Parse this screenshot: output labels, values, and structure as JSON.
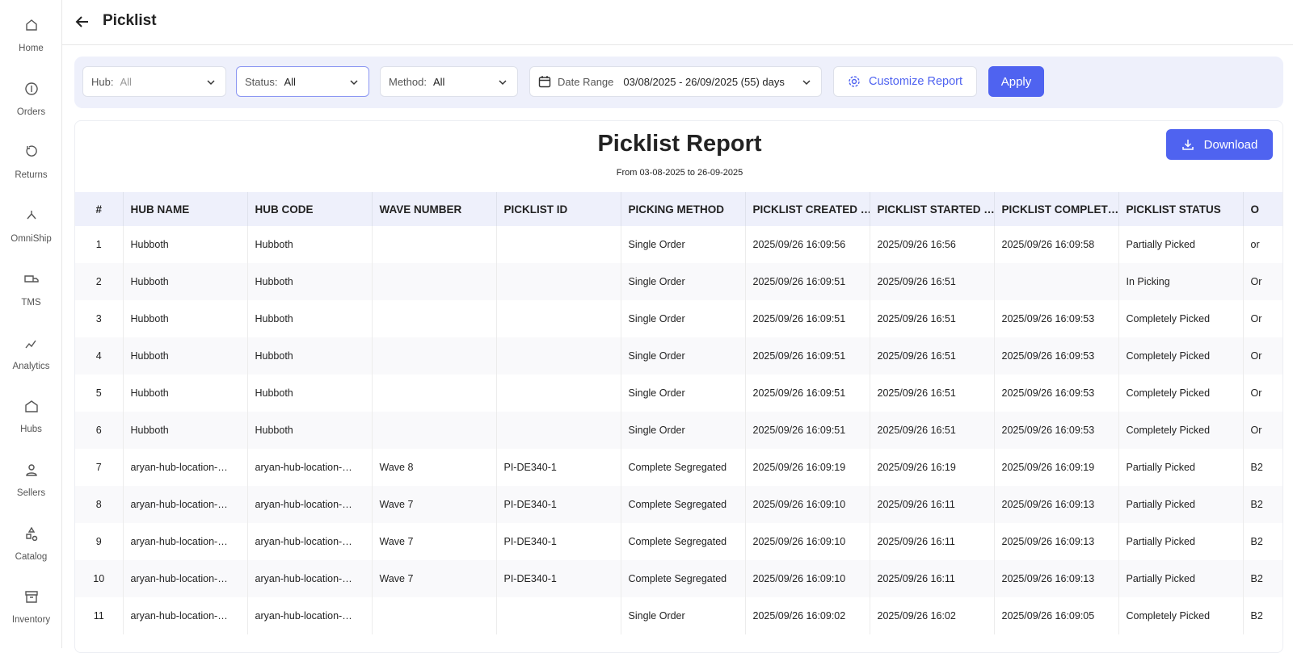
{
  "sidebar": {
    "items": [
      "Home",
      "Orders",
      "Returns",
      "OmniShip",
      "TMS",
      "Analytics",
      "Hubs",
      "Sellers",
      "Catalog",
      "Inventory"
    ]
  },
  "header": {
    "title": "Picklist"
  },
  "filters": {
    "hub": {
      "label": "Hub:",
      "value": "All"
    },
    "status": {
      "label": "Status:",
      "value": "All"
    },
    "method": {
      "label": "Method:",
      "value": "All"
    },
    "date_range": {
      "label": "Date Range",
      "value": "03/08/2025 - 26/09/2025 (55) days"
    },
    "customize": "Customize Report",
    "apply": "Apply"
  },
  "report": {
    "title": "Picklist Report",
    "subtitle": "From 03-08-2025 to 26-09-2025",
    "download": "Download"
  },
  "table": {
    "columns": [
      "#",
      "HUB NAME",
      "HUB CODE",
      "WAVE NUMBER",
      "PICKLIST ID",
      "PICKING METHOD",
      "PICKLIST CREATED …",
      "PICKLIST STARTED …",
      "PICKLIST COMPLET…",
      "PICKLIST STATUS",
      "O"
    ],
    "rows": [
      [
        "1",
        "Hubboth",
        "Hubboth",
        null,
        null,
        "Single Order",
        "2025/09/26 16:09:56",
        "2025/09/26 16:56",
        "2025/09/26 16:09:58",
        "Partially Picked",
        "or"
      ],
      [
        "2",
        "Hubboth",
        "Hubboth",
        null,
        null,
        "Single Order",
        "2025/09/26 16:09:51",
        "2025/09/26 16:51",
        null,
        "In Picking",
        "Or"
      ],
      [
        "3",
        "Hubboth",
        "Hubboth",
        null,
        null,
        "Single Order",
        "2025/09/26 16:09:51",
        "2025/09/26 16:51",
        "2025/09/26 16:09:53",
        "Completely Picked",
        "Or"
      ],
      [
        "4",
        "Hubboth",
        "Hubboth",
        null,
        null,
        "Single Order",
        "2025/09/26 16:09:51",
        "2025/09/26 16:51",
        "2025/09/26 16:09:53",
        "Completely Picked",
        "Or"
      ],
      [
        "5",
        "Hubboth",
        "Hubboth",
        null,
        null,
        "Single Order",
        "2025/09/26 16:09:51",
        "2025/09/26 16:51",
        "2025/09/26 16:09:53",
        "Completely Picked",
        "Or"
      ],
      [
        "6",
        "Hubboth",
        "Hubboth",
        null,
        null,
        "Single Order",
        "2025/09/26 16:09:51",
        "2025/09/26 16:51",
        "2025/09/26 16:09:53",
        "Completely Picked",
        "Or"
      ],
      [
        "7",
        "aryan-hub-location-…",
        "aryan-hub-location-…",
        "Wave 8",
        "PI-DE340-1",
        "Complete Segregated",
        "2025/09/26 16:09:19",
        "2025/09/26 16:19",
        "2025/09/26 16:09:19",
        "Partially Picked",
        "B2"
      ],
      [
        "8",
        "aryan-hub-location-…",
        "aryan-hub-location-…",
        "Wave 7",
        "PI-DE340-1",
        "Complete Segregated",
        "2025/09/26 16:09:10",
        "2025/09/26 16:11",
        "2025/09/26 16:09:13",
        "Partially Picked",
        "B2"
      ],
      [
        "9",
        "aryan-hub-location-…",
        "aryan-hub-location-…",
        "Wave 7",
        "PI-DE340-1",
        "Complete Segregated",
        "2025/09/26 16:09:10",
        "2025/09/26 16:11",
        "2025/09/26 16:09:13",
        "Partially Picked",
        "B2"
      ],
      [
        "10",
        "aryan-hub-location-…",
        "aryan-hub-location-…",
        "Wave 7",
        "PI-DE340-1",
        "Complete Segregated",
        "2025/09/26 16:09:10",
        "2025/09/26 16:11",
        "2025/09/26 16:09:13",
        "Partially Picked",
        "B2"
      ],
      [
        "11",
        "aryan-hub-location-…",
        "aryan-hub-location-…",
        null,
        null,
        "Single Order",
        "2025/09/26 16:09:02",
        "2025/09/26 16:02",
        "2025/09/26 16:09:05",
        "Completely Picked",
        "B2"
      ]
    ]
  }
}
